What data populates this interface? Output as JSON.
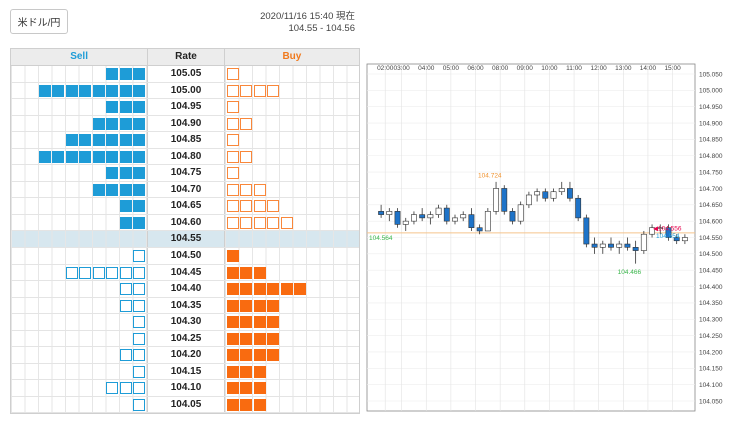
{
  "pair": "米ドル/円",
  "header": {
    "timestamp": "2020/11/16 15:40 現在",
    "range": "104.55 - 104.56"
  },
  "book": {
    "sell_label": "Sell",
    "rate_label": "Rate",
    "buy_label": "Buy",
    "current_rate": "104.55",
    "rows": [
      {
        "rate": "105.05",
        "sell_filled": 3,
        "sell_outline": 0,
        "buy_filled": 0,
        "buy_outline": 1
      },
      {
        "rate": "105.00",
        "sell_filled": 8,
        "sell_outline": 0,
        "buy_filled": 0,
        "buy_outline": 4
      },
      {
        "rate": "104.95",
        "sell_filled": 3,
        "sell_outline": 0,
        "buy_filled": 0,
        "buy_outline": 1
      },
      {
        "rate": "104.90",
        "sell_filled": 4,
        "sell_outline": 0,
        "buy_filled": 0,
        "buy_outline": 2
      },
      {
        "rate": "104.85",
        "sell_filled": 6,
        "sell_outline": 0,
        "buy_filled": 0,
        "buy_outline": 1
      },
      {
        "rate": "104.80",
        "sell_filled": 8,
        "sell_outline": 0,
        "buy_filled": 0,
        "buy_outline": 2
      },
      {
        "rate": "104.75",
        "sell_filled": 3,
        "sell_outline": 0,
        "buy_filled": 0,
        "buy_outline": 1
      },
      {
        "rate": "104.70",
        "sell_filled": 4,
        "sell_outline": 0,
        "buy_filled": 0,
        "buy_outline": 3
      },
      {
        "rate": "104.65",
        "sell_filled": 2,
        "sell_outline": 0,
        "buy_filled": 0,
        "buy_outline": 4
      },
      {
        "rate": "104.60",
        "sell_filled": 2,
        "sell_outline": 0,
        "buy_filled": 0,
        "buy_outline": 5
      },
      {
        "rate": "104.55",
        "sell_filled": 0,
        "sell_outline": 0,
        "buy_filled": 0,
        "buy_outline": 0
      },
      {
        "rate": "104.50",
        "sell_filled": 0,
        "sell_outline": 1,
        "buy_filled": 1,
        "buy_outline": 0
      },
      {
        "rate": "104.45",
        "sell_filled": 0,
        "sell_outline": 6,
        "buy_filled": 3,
        "buy_outline": 0
      },
      {
        "rate": "104.40",
        "sell_filled": 0,
        "sell_outline": 2,
        "buy_filled": 6,
        "buy_outline": 0
      },
      {
        "rate": "104.35",
        "sell_filled": 0,
        "sell_outline": 2,
        "buy_filled": 4,
        "buy_outline": 0
      },
      {
        "rate": "104.30",
        "sell_filled": 0,
        "sell_outline": 1,
        "buy_filled": 4,
        "buy_outline": 0
      },
      {
        "rate": "104.25",
        "sell_filled": 0,
        "sell_outline": 1,
        "buy_filled": 4,
        "buy_outline": 0
      },
      {
        "rate": "104.20",
        "sell_filled": 0,
        "sell_outline": 2,
        "buy_filled": 4,
        "buy_outline": 0
      },
      {
        "rate": "104.15",
        "sell_filled": 0,
        "sell_outline": 1,
        "buy_filled": 3,
        "buy_outline": 0
      },
      {
        "rate": "104.10",
        "sell_filled": 0,
        "sell_outline": 3,
        "buy_filled": 3,
        "buy_outline": 0
      },
      {
        "rate": "104.05",
        "sell_filled": 0,
        "sell_outline": 1,
        "buy_filled": 3,
        "buy_outline": 0
      }
    ]
  },
  "colors": {
    "sell": "#1e9cd7",
    "buy": "#f96b10",
    "up_candle": "#ffffff",
    "down_candle": "#1e73c8",
    "high_label": "#f0922e",
    "low_label": "#39b54a",
    "bid_label": "#e6004c",
    "ask_label": "#1e9cd7"
  },
  "chart_data": {
    "type": "candlestick",
    "x_ticks": [
      "02:00",
      "03:00",
      "04:00",
      "05:00",
      "06:00",
      "08:00",
      "09:00",
      "10:00",
      "11:00",
      "12:00",
      "13:00",
      "14:00",
      "15:00"
    ],
    "y_ticks": [
      "105.050",
      "105.000",
      "104.950",
      "104.900",
      "104.850",
      "104.800",
      "104.750",
      "104.700",
      "104.650",
      "104.600",
      "104.550",
      "104.500",
      "104.450",
      "104.400",
      "104.350",
      "104.300",
      "104.250",
      "104.200",
      "104.150",
      "104.100",
      "104.050"
    ],
    "ylim": [
      104.05,
      105.05
    ],
    "annotations": {
      "high": "104.724",
      "low": "104.466",
      "open_ref": "104.564",
      "bid": "104.556",
      "ask": "104.554"
    },
    "reference_line": 104.564,
    "candles": [
      {
        "o": 104.63,
        "h": 104.65,
        "l": 104.61,
        "c": 104.62
      },
      {
        "o": 104.62,
        "h": 104.64,
        "l": 104.6,
        "c": 104.63
      },
      {
        "o": 104.63,
        "h": 104.64,
        "l": 104.58,
        "c": 104.59
      },
      {
        "o": 104.59,
        "h": 104.61,
        "l": 104.57,
        "c": 104.6
      },
      {
        "o": 104.6,
        "h": 104.63,
        "l": 104.59,
        "c": 104.62
      },
      {
        "o": 104.62,
        "h": 104.64,
        "l": 104.6,
        "c": 104.61
      },
      {
        "o": 104.61,
        "h": 104.63,
        "l": 104.59,
        "c": 104.62
      },
      {
        "o": 104.62,
        "h": 104.65,
        "l": 104.61,
        "c": 104.64
      },
      {
        "o": 104.64,
        "h": 104.65,
        "l": 104.59,
        "c": 104.6
      },
      {
        "o": 104.6,
        "h": 104.62,
        "l": 104.59,
        "c": 104.61
      },
      {
        "o": 104.61,
        "h": 104.63,
        "l": 104.6,
        "c": 104.62
      },
      {
        "o": 104.62,
        "h": 104.64,
        "l": 104.57,
        "c": 104.58
      },
      {
        "o": 104.58,
        "h": 104.59,
        "l": 104.56,
        "c": 104.57
      },
      {
        "o": 104.57,
        "h": 104.64,
        "l": 104.57,
        "c": 104.63
      },
      {
        "o": 104.63,
        "h": 104.72,
        "l": 104.62,
        "c": 104.7
      },
      {
        "o": 104.7,
        "h": 104.71,
        "l": 104.62,
        "c": 104.63
      },
      {
        "o": 104.63,
        "h": 104.64,
        "l": 104.59,
        "c": 104.6
      },
      {
        "o": 104.6,
        "h": 104.66,
        "l": 104.59,
        "c": 104.65
      },
      {
        "o": 104.65,
        "h": 104.69,
        "l": 104.64,
        "c": 104.68
      },
      {
        "o": 104.68,
        "h": 104.7,
        "l": 104.66,
        "c": 104.69
      },
      {
        "o": 104.69,
        "h": 104.7,
        "l": 104.66,
        "c": 104.67
      },
      {
        "o": 104.67,
        "h": 104.7,
        "l": 104.66,
        "c": 104.69
      },
      {
        "o": 104.69,
        "h": 104.72,
        "l": 104.68,
        "c": 104.7
      },
      {
        "o": 104.7,
        "h": 104.72,
        "l": 104.66,
        "c": 104.67
      },
      {
        "o": 104.67,
        "h": 104.68,
        "l": 104.6,
        "c": 104.61
      },
      {
        "o": 104.61,
        "h": 104.62,
        "l": 104.52,
        "c": 104.53
      },
      {
        "o": 104.53,
        "h": 104.55,
        "l": 104.5,
        "c": 104.52
      },
      {
        "o": 104.52,
        "h": 104.54,
        "l": 104.5,
        "c": 104.53
      },
      {
        "o": 104.53,
        "h": 104.55,
        "l": 104.51,
        "c": 104.52
      },
      {
        "o": 104.52,
        "h": 104.54,
        "l": 104.5,
        "c": 104.53
      },
      {
        "o": 104.53,
        "h": 104.55,
        "l": 104.51,
        "c": 104.52
      },
      {
        "o": 104.52,
        "h": 104.54,
        "l": 104.47,
        "c": 104.51
      },
      {
        "o": 104.51,
        "h": 104.57,
        "l": 104.5,
        "c": 104.56
      },
      {
        "o": 104.56,
        "h": 104.59,
        "l": 104.55,
        "c": 104.58
      },
      {
        "o": 104.58,
        "h": 104.59,
        "l": 104.56,
        "c": 104.58
      },
      {
        "o": 104.58,
        "h": 104.59,
        "l": 104.54,
        "c": 104.55
      },
      {
        "o": 104.55,
        "h": 104.56,
        "l": 104.53,
        "c": 104.54
      },
      {
        "o": 104.54,
        "h": 104.56,
        "l": 104.53,
        "c": 104.55
      }
    ]
  }
}
